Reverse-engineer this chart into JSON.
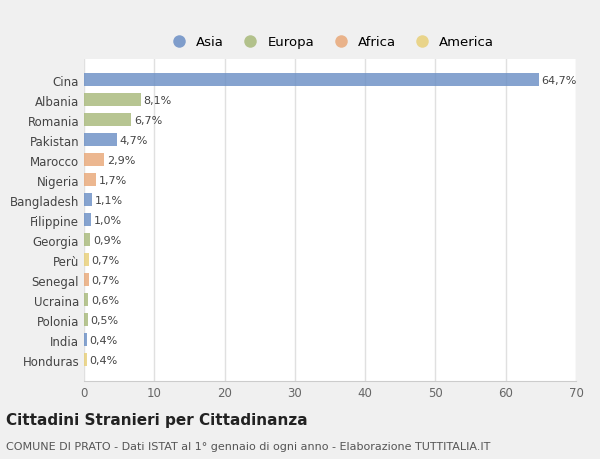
{
  "countries": [
    "Cina",
    "Albania",
    "Romania",
    "Pakistan",
    "Marocco",
    "Nigeria",
    "Bangladesh",
    "Filippine",
    "Georgia",
    "Perù",
    "Senegal",
    "Ucraina",
    "Polonia",
    "India",
    "Honduras"
  ],
  "values": [
    64.7,
    8.1,
    6.7,
    4.7,
    2.9,
    1.7,
    1.1,
    1.0,
    0.9,
    0.7,
    0.7,
    0.6,
    0.5,
    0.4,
    0.4
  ],
  "labels": [
    "64,7%",
    "8,1%",
    "6,7%",
    "4,7%",
    "2,9%",
    "1,7%",
    "1,1%",
    "1,0%",
    "0,9%",
    "0,7%",
    "0,7%",
    "0,6%",
    "0,5%",
    "0,4%",
    "0,4%"
  ],
  "continents": [
    "Asia",
    "Europa",
    "Europa",
    "Asia",
    "Africa",
    "Africa",
    "Asia",
    "Asia",
    "Europa",
    "America",
    "Africa",
    "Europa",
    "Europa",
    "Asia",
    "America"
  ],
  "continent_colors": {
    "Asia": "#6b8fc5",
    "Europa": "#a8b97a",
    "Africa": "#e8a878",
    "America": "#e8cf78"
  },
  "legend_order": [
    "Asia",
    "Europa",
    "Africa",
    "America"
  ],
  "title": "Cittadini Stranieri per Cittadinanza",
  "subtitle": "COMUNE DI PRATO - Dati ISTAT al 1° gennaio di ogni anno - Elaborazione TUTTITALIA.IT",
  "xlim": [
    0,
    70
  ],
  "xticks": [
    0,
    10,
    20,
    30,
    40,
    50,
    60,
    70
  ],
  "fig_bg_color": "#f0f0f0",
  "plot_bg_color": "#ffffff",
  "grid_color": "#e0e0e0",
  "bar_height": 0.65,
  "title_fontsize": 11,
  "subtitle_fontsize": 8,
  "label_fontsize": 8,
  "tick_fontsize": 8.5,
  "legend_fontsize": 9.5
}
